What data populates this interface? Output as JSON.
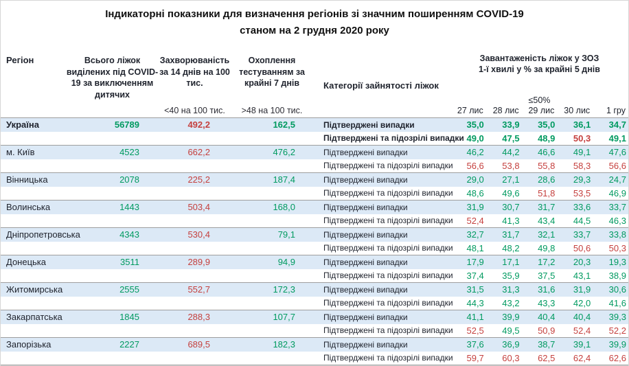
{
  "title": {
    "line1": "Індикаторні показники для визначення регіонів зі значним поширенням COVID-19",
    "line2": "станом на 2 грудня 2020 року"
  },
  "colors": {
    "green": "#009a60",
    "red": "#c5403e",
    "row_highlight": "#dce9f6",
    "divider": "#9e9e9e",
    "text": "#20242e"
  },
  "header": {
    "region": "Регіон",
    "beds": "Всього ліжок виділених під COVID-19 за виключенням дитячих",
    "incidence_title": "Захворюваність за 14 днів на 100 тис.",
    "incidence_threshold": "<40 на 100 тис.",
    "testing_title": "Охоплення тестуванням за крайні 7 днів",
    "testing_threshold": ">48 на 100 тис.",
    "category": "Категорії зайнятості ліжок",
    "occupancy_title_line1": "Завантаженість ліжок у ЗОЗ",
    "occupancy_title_line2": "1-ї хвилі у % за крайні 5 днів",
    "occupancy_threshold": "≤50%",
    "dates": [
      "27 лис",
      "28 лис",
      "29 лис",
      "30 лис",
      "1 гру"
    ]
  },
  "categories": {
    "confirmed": "Підтверджені випадки",
    "suspected": "Підтверджені та підозрілі випадки"
  },
  "rows": [
    {
      "region": "Україна",
      "bold": true,
      "beds": "56789",
      "incidence": "492,2",
      "testing": "162,5",
      "confirmed": {
        "values": [
          "35,0",
          "33,9",
          "35,0",
          "36,1",
          "34,7"
        ],
        "colors": [
          "g",
          "g",
          "g",
          "g",
          "g"
        ]
      },
      "suspected": {
        "values": [
          "49,0",
          "47,5",
          "48,9",
          "50,3",
          "49,1"
        ],
        "colors": [
          "g",
          "g",
          "g",
          "r",
          "g"
        ]
      }
    },
    {
      "region": "м. Київ",
      "bold": false,
      "beds": "4523",
      "incidence": "662,2",
      "testing": "476,2",
      "confirmed": {
        "values": [
          "46,2",
          "44,2",
          "46,6",
          "49,1",
          "47,6"
        ],
        "colors": [
          "g",
          "g",
          "g",
          "g",
          "g"
        ]
      },
      "suspected": {
        "values": [
          "56,6",
          "53,8",
          "55,8",
          "58,3",
          "56,6"
        ],
        "colors": [
          "r",
          "r",
          "r",
          "r",
          "r"
        ]
      }
    },
    {
      "region": "Вінницька",
      "bold": false,
      "beds": "2078",
      "incidence": "225,2",
      "testing": "187,4",
      "confirmed": {
        "values": [
          "29,0",
          "27,1",
          "28,6",
          "29,3",
          "24,7"
        ],
        "colors": [
          "g",
          "g",
          "g",
          "g",
          "g"
        ]
      },
      "suspected": {
        "values": [
          "48,6",
          "49,6",
          "51,8",
          "53,5",
          "46,9"
        ],
        "colors": [
          "g",
          "g",
          "r",
          "r",
          "g"
        ]
      }
    },
    {
      "region": "Волинська",
      "bold": false,
      "beds": "1443",
      "incidence": "503,4",
      "testing": "168,0",
      "confirmed": {
        "values": [
          "31,9",
          "30,7",
          "31,7",
          "33,6",
          "33,7"
        ],
        "colors": [
          "g",
          "g",
          "g",
          "g",
          "g"
        ]
      },
      "suspected": {
        "values": [
          "52,4",
          "41,3",
          "43,4",
          "44,5",
          "46,3"
        ],
        "colors": [
          "r",
          "g",
          "g",
          "g",
          "g"
        ]
      }
    },
    {
      "region": "Дніпропетровська",
      "bold": false,
      "beds": "4343",
      "incidence": "530,4",
      "testing": "79,1",
      "confirmed": {
        "values": [
          "32,7",
          "31,7",
          "32,1",
          "33,7",
          "33,8"
        ],
        "colors": [
          "g",
          "g",
          "g",
          "g",
          "g"
        ]
      },
      "suspected": {
        "values": [
          "48,1",
          "48,2",
          "49,8",
          "50,6",
          "50,3"
        ],
        "colors": [
          "g",
          "g",
          "g",
          "r",
          "r"
        ]
      }
    },
    {
      "region": "Донецька",
      "bold": false,
      "beds": "3511",
      "incidence": "289,9",
      "testing": "94,9",
      "confirmed": {
        "values": [
          "17,9",
          "17,1",
          "17,2",
          "20,3",
          "19,3"
        ],
        "colors": [
          "g",
          "g",
          "g",
          "g",
          "g"
        ]
      },
      "suspected": {
        "values": [
          "37,4",
          "35,9",
          "37,5",
          "43,1",
          "38,9"
        ],
        "colors": [
          "g",
          "g",
          "g",
          "g",
          "g"
        ]
      }
    },
    {
      "region": "Житомирська",
      "bold": false,
      "beds": "2555",
      "incidence": "552,7",
      "testing": "172,3",
      "confirmed": {
        "values": [
          "31,5",
          "31,3",
          "31,6",
          "31,9",
          "30,6"
        ],
        "colors": [
          "g",
          "g",
          "g",
          "g",
          "g"
        ]
      },
      "suspected": {
        "values": [
          "44,3",
          "43,2",
          "43,3",
          "42,0",
          "41,6"
        ],
        "colors": [
          "g",
          "g",
          "g",
          "g",
          "g"
        ]
      }
    },
    {
      "region": "Закарпатська",
      "bold": false,
      "beds": "1845",
      "incidence": "288,3",
      "testing": "107,7",
      "confirmed": {
        "values": [
          "41,1",
          "39,9",
          "40,4",
          "40,4",
          "39,3"
        ],
        "colors": [
          "g",
          "g",
          "g",
          "g",
          "g"
        ]
      },
      "suspected": {
        "values": [
          "52,5",
          "49,5",
          "50,9",
          "52,4",
          "52,2"
        ],
        "colors": [
          "r",
          "g",
          "r",
          "r",
          "r"
        ]
      }
    },
    {
      "region": "Запорізька",
      "bold": false,
      "beds": "2227",
      "incidence": "689,5",
      "testing": "182,3",
      "confirmed": {
        "values": [
          "37,6",
          "36,9",
          "38,7",
          "39,1",
          "39,9"
        ],
        "colors": [
          "g",
          "g",
          "g",
          "g",
          "g"
        ]
      },
      "suspected": {
        "values": [
          "59,7",
          "60,3",
          "62,5",
          "62,4",
          "62,6"
        ],
        "colors": [
          "r",
          "r",
          "r",
          "r",
          "r"
        ]
      }
    }
  ]
}
